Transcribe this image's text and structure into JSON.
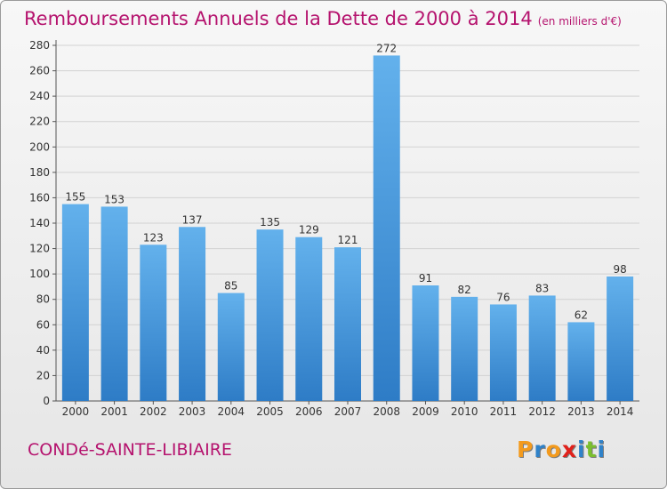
{
  "header": {
    "title": "Remboursements Annuels de la Dette de 2000 à 2014",
    "unit": "(en milliers d'€)"
  },
  "footer": {
    "commune": "CONDé-SAINTE-LIBIAIRE",
    "logo": "Proxiti"
  },
  "colors": {
    "title": "#b5136e",
    "bar_top": "#63b1ec",
    "bar_bottom": "#2e7cc6",
    "logo_letters": [
      "#f39a1d",
      "#2f82c9",
      "#f39a1d",
      "#e0211b",
      "#2f82c9",
      "#7bbf2e",
      "#2f82c9"
    ]
  },
  "chart_data": {
    "type": "bar",
    "title": "Remboursements Annuels de la Dette de 2000 à 2014",
    "xlabel": "",
    "ylabel": "",
    "categories": [
      "2000",
      "2001",
      "2002",
      "2003",
      "2004",
      "2005",
      "2006",
      "2007",
      "2008",
      "2009",
      "2010",
      "2011",
      "2012",
      "2013",
      "2014"
    ],
    "values": [
      155,
      153,
      123,
      137,
      85,
      135,
      129,
      121,
      272,
      91,
      82,
      76,
      83,
      62,
      98
    ],
    "ylim": [
      0,
      280
    ],
    "yticks": [
      0,
      20,
      40,
      60,
      80,
      100,
      120,
      140,
      160,
      180,
      200,
      220,
      240,
      260,
      280
    ],
    "grid": true,
    "data_labels": true
  }
}
